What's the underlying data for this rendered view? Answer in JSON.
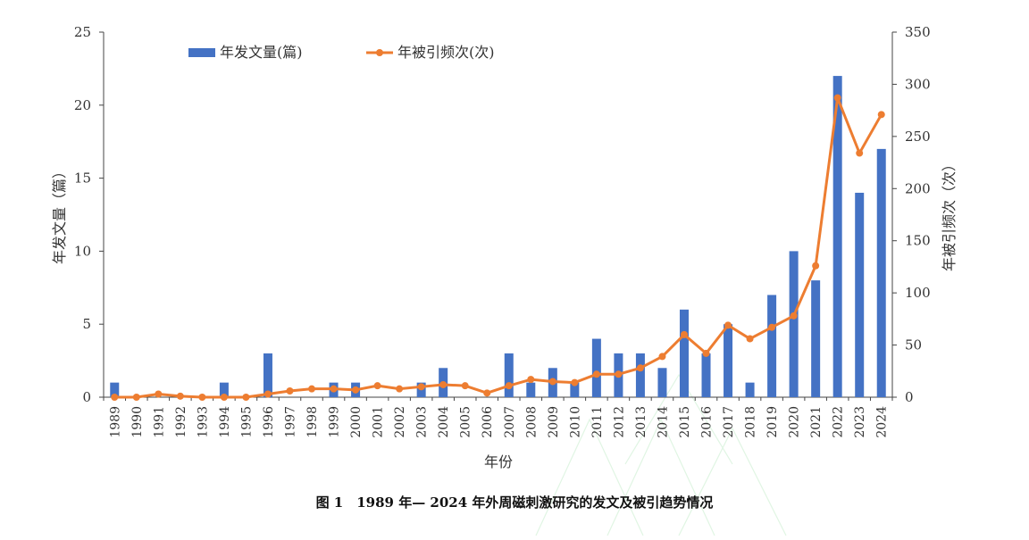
{
  "caption": "图 1　1989 年— 2024 年外周磁刺激研究的发文及被引趋势情况",
  "chart_data": {
    "type": "bar+line",
    "categories": [
      "1989",
      "1990",
      "1991",
      "1992",
      "1993",
      "1994",
      "1995",
      "1996",
      "1997",
      "1998",
      "1999",
      "2000",
      "2001",
      "2002",
      "2003",
      "2004",
      "2005",
      "2006",
      "2007",
      "2008",
      "2009",
      "2010",
      "2011",
      "2012",
      "2013",
      "2014",
      "2015",
      "2016",
      "2017",
      "2018",
      "2019",
      "2020",
      "2021",
      "2022",
      "2023",
      "2024"
    ],
    "xlabel": "年份",
    "ylabel_left": "年发文量（篇）",
    "ylabel_right": "年被引频次（次）",
    "ylim_left": [
      0,
      25
    ],
    "ylim_right": [
      0,
      350
    ],
    "yticks_left": [
      0,
      5,
      10,
      15,
      20,
      25
    ],
    "yticks_right": [
      0,
      50,
      100,
      150,
      200,
      250,
      300,
      350
    ],
    "grid": false,
    "legend_position": "top",
    "series": [
      {
        "name": "年发文量(篇)",
        "type": "bar",
        "axis": "left",
        "color": "#4472C4",
        "values": [
          1,
          0,
          0,
          0,
          0,
          1,
          0,
          3,
          0,
          0,
          1,
          1,
          0,
          0,
          1,
          2,
          0,
          0,
          3,
          1,
          2,
          1,
          4,
          3,
          3,
          2,
          6,
          3,
          5,
          1,
          7,
          10,
          8,
          22,
          14,
          17
        ]
      },
      {
        "name": "年被引频次(次)",
        "type": "line",
        "axis": "right",
        "color": "#ED7D31",
        "values": [
          0,
          0,
          3,
          1,
          0,
          0,
          0,
          3,
          6,
          8,
          8,
          7,
          11,
          8,
          10,
          12,
          11,
          4,
          11,
          17,
          15,
          14,
          22,
          22,
          28,
          39,
          60,
          42,
          69,
          56,
          67,
          78,
          126,
          287,
          234,
          271
        ]
      }
    ]
  }
}
